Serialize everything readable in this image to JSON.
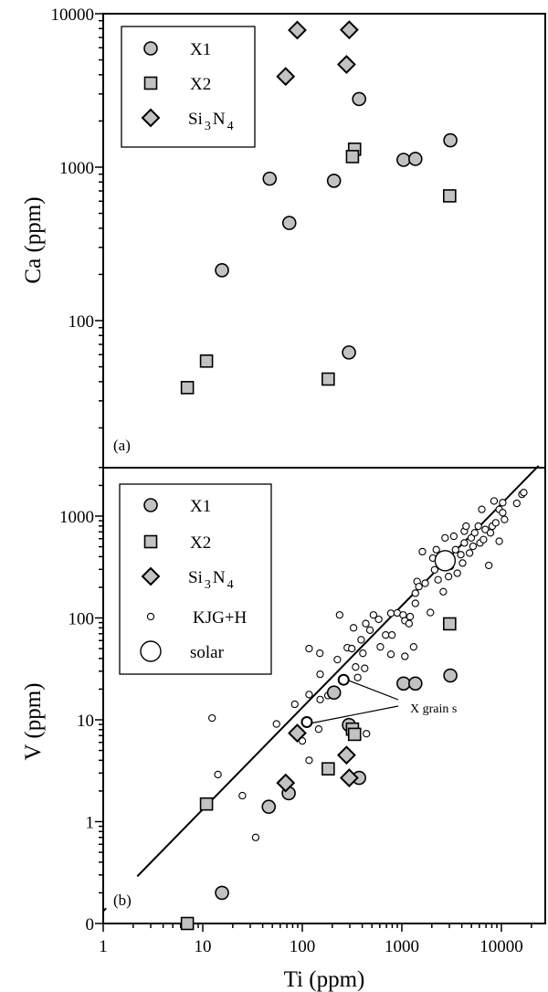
{
  "colors": {
    "marker_fill": "#c2c2c2",
    "stroke": "#000000",
    "background": "#ffffff"
  },
  "chart_data": [
    {
      "type": "scatter",
      "panel_label": "(a)",
      "xlabel": "",
      "ylabel": "Ca (ppm)",
      "xscale": "log",
      "yscale": "log",
      "xlim": [
        1,
        27500
      ],
      "ylim": [
        11,
        10000
      ],
      "yticks": [
        {
          "value": 10000,
          "label": "10000"
        },
        {
          "value": 1000,
          "label": "1000"
        },
        {
          "value": 100,
          "label": "100"
        }
      ],
      "legend": {
        "placement": "top-left",
        "entries": [
          {
            "label": "X1",
            "marker": "circle"
          },
          {
            "label": "X2",
            "marker": "square"
          },
          {
            "label_main": "Si",
            "sub1": "3",
            "label_mid": "N",
            "sub2": "4",
            "marker": "diamond"
          }
        ]
      },
      "series": [
        {
          "name": "X1",
          "marker": "circle",
          "x": [
            372,
            3070,
            1040,
            1367,
            47,
            208,
            74,
            15.6,
            294
          ],
          "y": [
            2780,
            1497,
            1116,
            1132,
            841,
            815,
            433,
            213,
            62
          ]
        },
        {
          "name": "X2",
          "marker": "square",
          "x": [
            335,
            319,
            3020,
            10.9,
            7.0,
            182
          ],
          "y": [
            1309,
            1172,
            650,
            54.5,
            36.6,
            41.6
          ]
        },
        {
          "name": "Si3N4",
          "marker": "diamond",
          "x": [
            89,
            296,
            278,
            68
          ],
          "y": [
            7820,
            7850,
            4670,
            3900
          ]
        }
      ]
    },
    {
      "type": "scatter",
      "panel_label": "(b)",
      "xlabel": "Ti (ppm)",
      "ylabel": "V (ppm)",
      "xscale": "log",
      "yscale": "log",
      "xlim": [
        1,
        27500
      ],
      "ylim": [
        0.1,
        3100
      ],
      "xticks": [
        {
          "value": 1,
          "label": "1"
        },
        {
          "value": 10,
          "label": "10"
        },
        {
          "value": 100,
          "label": "100"
        },
        {
          "value": 1000,
          "label": "1000"
        },
        {
          "value": 10000,
          "label": "10000"
        }
      ],
      "yticks": [
        {
          "value": 1000,
          "label": "1000"
        },
        {
          "value": 100,
          "label": "100"
        },
        {
          "value": 10,
          "label": "10"
        },
        {
          "value": 1,
          "label": "1"
        },
        {
          "value": 0.1,
          "label": "0"
        }
      ],
      "legend": {
        "placement": "top-left",
        "entries": [
          {
            "label": "X1",
            "marker": "circle"
          },
          {
            "label": "X2",
            "marker": "square"
          },
          {
            "label_main": "Si",
            "sub1": "3",
            "label_mid": "N",
            "sub2": "4",
            "marker": "diamond"
          },
          {
            "label": "KJG+H",
            "marker": "small-open-circle"
          },
          {
            "label": "solar",
            "marker": "large-open-circle"
          }
        ]
      },
      "reference_line": {
        "V_over_Ti": 0.132,
        "ti_range": [
          2.2,
          23600
        ]
      },
      "annotation": {
        "text": "X grain s",
        "points": [
          {
            "x": 260,
            "y": 24.7
          },
          {
            "x": 111,
            "y": 9.5
          }
        ]
      },
      "series": [
        {
          "name": "KJG+H",
          "marker": "small-open-circle",
          "x": [
            12.4,
            14.2,
            25,
            34,
            55,
            84,
            100,
            117,
            117,
            117,
            146,
            151,
            150,
            151,
            181,
            225,
            237,
            283,
            314,
            327,
            343,
            360,
            390,
            406,
            423,
            441,
            434,
            478,
            518,
            585,
            608,
            687,
            776,
            795,
            776,
            898,
            1030,
            1072,
            1072,
            1180,
            1210,
            1312,
            1367,
            1367,
            1422,
            1482,
            1607,
            1714,
            1935,
            2048,
            2133,
            2218,
            2311,
            2506,
            2608,
            2716,
            2944,
            3067,
            3325,
            3461,
            3606,
            3908,
            4073,
            4240,
            4240,
            4416,
            4786,
            4977,
            5188,
            5395,
            5861,
            6095,
            6353,
            6607,
            6887,
            7464,
            7762,
            8091,
            8433,
            8770,
            9506,
            9506,
            10300,
            10740,
            10300,
            14260,
            16070,
            16760,
            3190
          ],
          "y": [
            10.4,
            2.9,
            1.8,
            0.7,
            9.1,
            14.2,
            6.2,
            50,
            17.7,
            4.0,
            8.1,
            28,
            45,
            15.8,
            17.3,
            39,
            107,
            51,
            50,
            80,
            33,
            26,
            61,
            45,
            32,
            7.3,
            88,
            76,
            107,
            97,
            52,
            68,
            111,
            68,
            44,
            112,
            107,
            94,
            42,
            88,
            103,
            52,
            139,
            175,
            228,
            203,
            448,
            219,
            113,
            387,
            297,
            468,
            237,
            373,
            181,
            611,
            255,
            321,
            634,
            468,
            275,
            418,
            346,
            545,
            711,
            796,
            434,
            611,
            505,
            685,
            796,
            545,
            1164,
            588,
            738,
            328,
            685,
            796,
            1407,
            859,
            566,
            1164,
            1079,
            927,
            1355,
            1334,
            1637,
            1702,
            85
          ]
        },
        {
          "name": "X1",
          "marker": "circle",
          "x": [
            208,
            1040,
            1367,
            3070,
            294,
            372,
            73,
            46,
            15.6
          ],
          "y": [
            18.5,
            22.7,
            22.7,
            27.2,
            8.9,
            2.69,
            1.9,
            1.4,
            0.2
          ]
        },
        {
          "name": "X2",
          "marker": "square",
          "x": [
            3020,
            319,
            335,
            182,
            10.9,
            7.0
          ],
          "y": [
            87.5,
            8.1,
            7.2,
            3.3,
            1.49,
            0.1
          ]
        },
        {
          "name": "Si3N4",
          "marker": "diamond",
          "x": [
            89,
            278,
            296,
            68
          ],
          "y": [
            7.4,
            4.5,
            2.69,
            2.4
          ]
        },
        {
          "name": "X grains (KJG+H)",
          "marker": "highlighted-open-circle",
          "x": [
            260,
            111
          ],
          "y": [
            24.7,
            9.5
          ]
        },
        {
          "name": "solar",
          "marker": "large-open-circle",
          "x": [
            2720
          ],
          "y": [
            365
          ]
        }
      ]
    }
  ]
}
